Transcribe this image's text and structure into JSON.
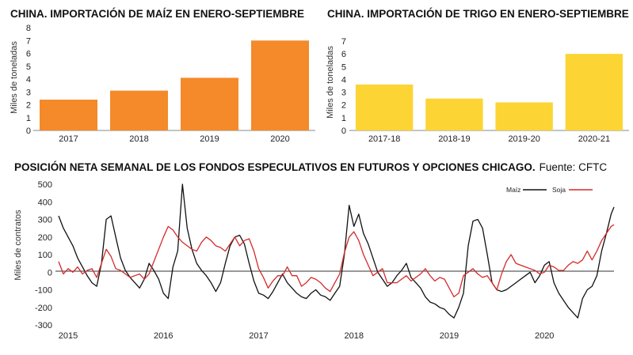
{
  "chart_data": [
    {
      "type": "bar",
      "title": "CHINA. IMPORTACIÓN DE MAÍZ EN ENERO-SEPTIEMBRE",
      "ylabel": "Miles de toneladas",
      "categories": [
        "2017",
        "2018",
        "2019",
        "2020"
      ],
      "values": [
        2.4,
        3.1,
        4.1,
        7.0
      ],
      "ylim": [
        0,
        8
      ],
      "yticks": [
        "0",
        "1",
        "2",
        "3",
        "4",
        "5",
        "6",
        "7",
        "8"
      ],
      "color": "#f48a2a",
      "grid": false
    },
    {
      "type": "bar",
      "title": "CHINA. IMPORTACIÓN DE TRIGO EN ENERO-SEPTIEMBRE",
      "ylabel": "Miles de toneladas",
      "categories": [
        "2017-18",
        "2018-19",
        "2019-20",
        "2020-21"
      ],
      "values": [
        3.6,
        2.5,
        2.2,
        6.0
      ],
      "ylim": [
        0,
        7
      ],
      "yticks": [
        "0",
        "1",
        "2",
        "3",
        "4",
        "5",
        "6",
        "7"
      ],
      "color": "#fcd434",
      "grid": false
    },
    {
      "type": "line",
      "title": "POSICIÓN NETA SEMANAL DE LOS FONDOS ESPECULATIVOS EN FUTUROS Y OPCIONES CHICAGO.",
      "source": "Fuente: CFTC",
      "ylabel": "Miles de contratos",
      "ylim": [
        -300,
        500
      ],
      "yticks": [
        "-300",
        "-200",
        "-100",
        "0",
        "100",
        "200",
        "300",
        "400",
        "500"
      ],
      "xlim": [
        2015.0,
        2020.83
      ],
      "xticks": [
        "2015",
        "2016",
        "2017",
        "2018",
        "2019",
        "2020"
      ],
      "legend_position": "top-right",
      "series": [
        {
          "name": "Maíz",
          "color": "#111111",
          "x": [
            2015.0,
            2015.05,
            2015.1,
            2015.15,
            2015.2,
            2015.25,
            2015.3,
            2015.35,
            2015.4,
            2015.45,
            2015.5,
            2015.55,
            2015.6,
            2015.65,
            2015.7,
            2015.75,
            2015.8,
            2015.85,
            2015.9,
            2015.95,
            2016.0,
            2016.05,
            2016.1,
            2016.15,
            2016.2,
            2016.25,
            2016.3,
            2016.35,
            2016.4,
            2016.45,
            2016.5,
            2016.55,
            2016.6,
            2016.65,
            2016.7,
            2016.75,
            2016.8,
            2016.85,
            2016.9,
            2016.95,
            2017.0,
            2017.05,
            2017.1,
            2017.15,
            2017.2,
            2017.25,
            2017.3,
            2017.35,
            2017.4,
            2017.45,
            2017.5,
            2017.55,
            2017.6,
            2017.65,
            2017.7,
            2017.75,
            2017.8,
            2017.85,
            2017.9,
            2017.95,
            2018.0,
            2018.05,
            2018.1,
            2018.15,
            2018.2,
            2018.25,
            2018.3,
            2018.35,
            2018.4,
            2018.45,
            2018.5,
            2018.55,
            2018.6,
            2018.65,
            2018.7,
            2018.75,
            2018.8,
            2018.85,
            2018.9,
            2018.95,
            2019.0,
            2019.05,
            2019.1,
            2019.15,
            2019.2,
            2019.25,
            2019.3,
            2019.35,
            2019.4,
            2019.45,
            2019.5,
            2019.55,
            2019.6,
            2019.65,
            2019.7,
            2019.75,
            2019.8,
            2019.85,
            2019.9,
            2019.95,
            2020.0,
            2020.05,
            2020.1,
            2020.15,
            2020.2,
            2020.25,
            2020.3,
            2020.35,
            2020.4,
            2020.45,
            2020.5,
            2020.55,
            2020.6,
            2020.65,
            2020.7,
            2020.75,
            2020.8,
            2020.83
          ],
          "y": [
            320,
            250,
            200,
            150,
            80,
            30,
            -20,
            -60,
            -80,
            50,
            300,
            320,
            200,
            80,
            10,
            -30,
            -60,
            -90,
            -40,
            50,
            10,
            -40,
            -120,
            -150,
            30,
            120,
            500,
            250,
            130,
            50,
            10,
            -20,
            -60,
            -110,
            -60,
            50,
            150,
            200,
            210,
            160,
            50,
            -50,
            -120,
            -130,
            -150,
            -110,
            -60,
            -10,
            -60,
            -90,
            -120,
            -140,
            -150,
            -120,
            -100,
            -130,
            -140,
            -160,
            -120,
            -80,
            100,
            380,
            260,
            330,
            220,
            160,
            80,
            0,
            -40,
            -80,
            -60,
            -20,
            10,
            50,
            -30,
            -60,
            -90,
            -140,
            -170,
            -180,
            -200,
            -210,
            -240,
            -260,
            -200,
            -120,
            150,
            290,
            300,
            250,
            100,
            -60,
            -100,
            -110,
            -100,
            -80,
            -60,
            -40,
            -20,
            0,
            -60,
            -20,
            40,
            60,
            -60,
            -120,
            -160,
            -200,
            -230,
            -260,
            -150,
            -100,
            -80,
            -20,
            120,
            220,
            330,
            370
          ]
        },
        {
          "name": "Soja",
          "color": "#d42a2a",
          "x": [
            2015.0,
            2015.05,
            2015.1,
            2015.15,
            2015.2,
            2015.25,
            2015.3,
            2015.35,
            2015.4,
            2015.45,
            2015.5,
            2015.55,
            2015.6,
            2015.65,
            2015.7,
            2015.75,
            2015.8,
            2015.85,
            2015.9,
            2015.95,
            2016.0,
            2016.05,
            2016.1,
            2016.15,
            2016.2,
            2016.25,
            2016.3,
            2016.35,
            2016.4,
            2016.45,
            2016.5,
            2016.55,
            2016.6,
            2016.65,
            2016.7,
            2016.75,
            2016.8,
            2016.85,
            2016.9,
            2016.95,
            2017.0,
            2017.05,
            2017.1,
            2017.15,
            2017.2,
            2017.25,
            2017.3,
            2017.35,
            2017.4,
            2017.45,
            2017.5,
            2017.55,
            2017.6,
            2017.65,
            2017.7,
            2017.75,
            2017.8,
            2017.85,
            2017.9,
            2017.95,
            2018.0,
            2018.05,
            2018.1,
            2018.15,
            2018.2,
            2018.25,
            2018.3,
            2018.35,
            2018.4,
            2018.45,
            2018.5,
            2018.55,
            2018.6,
            2018.65,
            2018.7,
            2018.75,
            2018.8,
            2018.85,
            2018.9,
            2018.95,
            2019.0,
            2019.05,
            2019.1,
            2019.15,
            2019.2,
            2019.25,
            2019.3,
            2019.35,
            2019.4,
            2019.45,
            2019.5,
            2019.55,
            2019.6,
            2019.65,
            2019.7,
            2019.75,
            2019.8,
            2019.85,
            2019.9,
            2019.95,
            2020.0,
            2020.05,
            2020.1,
            2020.15,
            2020.2,
            2020.25,
            2020.3,
            2020.35,
            2020.4,
            2020.45,
            2020.5,
            2020.55,
            2020.6,
            2020.65,
            2020.7,
            2020.75,
            2020.8,
            2020.83
          ],
          "y": [
            60,
            -10,
            20,
            0,
            30,
            -10,
            10,
            20,
            -30,
            50,
            130,
            90,
            20,
            10,
            -10,
            -30,
            -20,
            -10,
            -40,
            -10,
            60,
            130,
            200,
            260,
            240,
            200,
            170,
            150,
            130,
            120,
            170,
            200,
            180,
            150,
            140,
            120,
            160,
            200,
            150,
            180,
            190,
            120,
            20,
            -30,
            -90,
            -50,
            -20,
            -20,
            30,
            -20,
            -20,
            -80,
            -60,
            -30,
            -40,
            -60,
            -90,
            -110,
            -60,
            -10,
            110,
            200,
            230,
            180,
            100,
            40,
            -20,
            0,
            20,
            -60,
            -60,
            -60,
            -40,
            -20,
            -50,
            -30,
            -10,
            20,
            -20,
            -50,
            -30,
            -40,
            -90,
            -140,
            -120,
            -20,
            0,
            20,
            -10,
            -30,
            -20,
            -60,
            -100,
            -10,
            60,
            100,
            50,
            40,
            30,
            20,
            10,
            -10,
            0,
            40,
            30,
            10,
            10,
            40,
            60,
            50,
            70,
            120,
            70,
            120,
            180,
            220,
            260,
            270
          ]
        }
      ]
    }
  ]
}
